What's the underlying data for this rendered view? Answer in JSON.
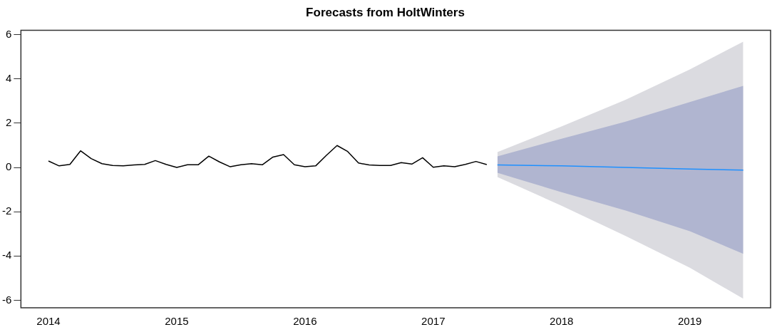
{
  "chart_data": {
    "type": "line",
    "title": "Forecasts from HoltWinters",
    "xlim": [
      2013.785,
      2019.63
    ],
    "xticks": [
      2014,
      2015,
      2016,
      2017,
      2018,
      2019
    ],
    "ylim": [
      -6.34,
      6.2
    ],
    "yticks": [
      -6,
      -4,
      -2,
      0,
      2,
      4,
      6
    ],
    "grid": false,
    "legend": false,
    "marker": "none",
    "line_style": "solid",
    "series": [
      {
        "color": "#000000",
        "x": [
          2014,
          2014.083,
          2014.167,
          2014.25,
          2014.333,
          2014.417,
          2014.5,
          2014.583,
          2014.667,
          2014.75,
          2014.833,
          2014.917,
          2015,
          2015.083,
          2015.167,
          2015.25,
          2015.333,
          2015.417,
          2015.5,
          2015.583,
          2015.667,
          2015.75,
          2015.833,
          2015.917,
          2016,
          2016.083,
          2016.167,
          2016.25,
          2016.333,
          2016.417,
          2016.5,
          2016.583,
          2016.667,
          2016.75,
          2016.833,
          2016.917,
          2017,
          2017.083,
          2017.167,
          2017.25,
          2017.333,
          2017.417
        ],
        "values": [
          0.29,
          0.07,
          0.14,
          0.75,
          0.4,
          0.17,
          0.09,
          0.07,
          0.11,
          0.14,
          0.31,
          0.14,
          0.0,
          0.12,
          0.12,
          0.51,
          0.25,
          0.03,
          0.12,
          0.17,
          0.12,
          0.47,
          0.58,
          0.12,
          0.03,
          0.07,
          0.55,
          0.99,
          0.72,
          0.2,
          0.11,
          0.09,
          0.09,
          0.22,
          0.15,
          0.44,
          0.01,
          0.07,
          0.03,
          0.14,
          0.27,
          0.13
        ]
      },
      {
        "color": "#dbdbe0",
        "x": [
          2017.5,
          2018,
          2018.5,
          2019,
          2019.417
        ],
        "values": [
          null,
          null,
          null,
          null,
          null
        ],
        "lower": [
          -0.43,
          -1.73,
          -3.1,
          -4.53,
          -5.93
        ],
        "upper": [
          0.69,
          1.85,
          3.06,
          4.43,
          5.68
        ]
      },
      {
        "color": "#1e90ff",
        "x": [
          2017.5,
          2018,
          2018.5,
          2019,
          2019.417
        ],
        "values": [
          0.11,
          0.07,
          0.0,
          -0.07,
          -0.12
        ],
        "lower": [
          -0.24,
          -1.12,
          -1.95,
          -2.88,
          -3.9
        ],
        "upper": [
          0.5,
          1.3,
          2.07,
          2.95,
          3.69
        ]
      }
    ]
  }
}
